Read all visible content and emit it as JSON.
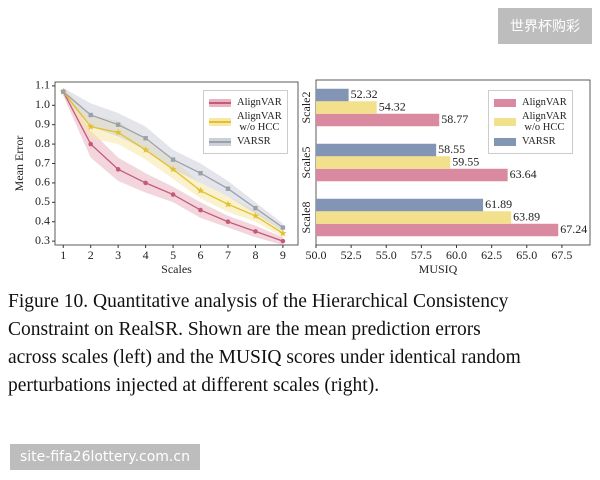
{
  "chart_data": [
    {
      "type": "line",
      "ylabel": "Mean Error",
      "xlabel": "Scales",
      "x": [
        1,
        2,
        3,
        4,
        5,
        6,
        7,
        8,
        9
      ],
      "xlim": [
        0.7,
        9.55
      ],
      "xticks": [
        1,
        2,
        3,
        4,
        5,
        6,
        7,
        8,
        9
      ],
      "ylim": [
        0.28,
        1.12
      ],
      "yticks": [
        0.3,
        0.4,
        0.5,
        0.6,
        0.7,
        0.8,
        0.9,
        {
          "value": 1,
          "label": "1.0"
        },
        1.1
      ],
      "legend": "upper right",
      "series": [
        {
          "name": "AlignVAR",
          "color": "#c55a78",
          "band_color": "#eab3c1",
          "marker": "circle",
          "values": [
            1.07,
            0.8,
            0.67,
            0.6,
            0.54,
            0.46,
            0.4,
            0.35,
            0.3
          ],
          "errors": [
            0.02,
            0.07,
            0.06,
            0.05,
            0.04,
            0.04,
            0.03,
            0.03,
            0.02
          ]
        },
        {
          "name": "AlignVAR\nw/o HCC",
          "color": "#e3c12e",
          "band_color": "#f6e7a6",
          "marker": "star",
          "values": [
            1.07,
            0.89,
            0.86,
            0.77,
            0.67,
            0.56,
            0.49,
            0.43,
            0.34
          ],
          "errors": [
            0.02,
            0.06,
            0.06,
            0.05,
            0.05,
            0.04,
            0.04,
            0.03,
            0.02
          ]
        },
        {
          "name": "VARSR",
          "color": "#9ba1ab",
          "band_color": "#ccd0d8",
          "marker": "square",
          "values": [
            1.07,
            0.95,
            0.9,
            0.83,
            0.72,
            0.65,
            0.57,
            0.47,
            0.37
          ],
          "errors": [
            0.02,
            0.06,
            0.06,
            0.06,
            0.05,
            0.05,
            0.04,
            0.03,
            0.02
          ]
        }
      ]
    },
    {
      "type": "hbar",
      "xlabel": "MUSIQ",
      "categories": [
        "Scale2",
        "Scale5",
        "Scale8"
      ],
      "xlim": [
        50,
        69.5
      ],
      "xticks": [
        {
          "value": 50,
          "label": "50.0"
        },
        52.5,
        {
          "value": 55,
          "label": "55.0"
        },
        57.5,
        {
          "value": 60,
          "label": "60.0"
        },
        62.5,
        {
          "value": 65,
          "label": "65.0"
        },
        67.5
      ],
      "legend": "upper right",
      "series": [
        {
          "name": "AlignVAR",
          "color": "#d98aa0",
          "values": [
            58.77,
            63.64,
            67.24
          ]
        },
        {
          "name": "AlignVAR\nw/o HCC",
          "color": "#f3e08c",
          "values": [
            54.32,
            59.55,
            63.89
          ]
        },
        {
          "name": "VARSR",
          "color": "#8295b5",
          "values": [
            52.32,
            58.55,
            61.89
          ]
        }
      ]
    }
  ],
  "caption": [
    "Figure 10.  Quantitative analysis of the Hierarchical Consistency",
    "Constraint on RealSR. Shown are the mean prediction errors",
    "across scales (left) and the MUSIQ scores under identical random",
    "perturbations injected at different scales (right)."
  ],
  "watermarks": [
    "世界杯购彩",
    "site-fifa26lottery.com.cn"
  ]
}
